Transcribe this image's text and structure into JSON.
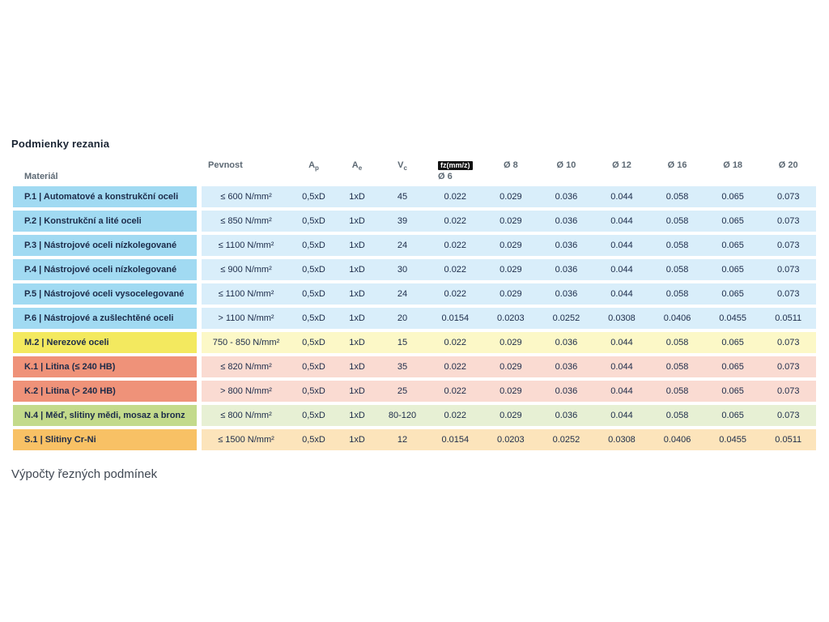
{
  "page": {
    "title": "Podmienky rezania",
    "footer_text": "Výpočty řezných podmínek"
  },
  "table": {
    "fz_badge": "fz(mm/z)",
    "headers": {
      "material": "Materiál",
      "strength": "Pevnost",
      "ap": {
        "base": "A",
        "sub": "p"
      },
      "ae": {
        "base": "A",
        "sub": "e"
      },
      "vc": {
        "base": "V",
        "sub": "c"
      },
      "diameters": [
        "Ø 6",
        "Ø 8",
        "Ø 10",
        "Ø 12",
        "Ø 16",
        "Ø 18",
        "Ø 20"
      ]
    },
    "colors": {
      "badge_bg": "#111111",
      "badge_fg": "#ffffff",
      "steel": {
        "label": "#a1daf2",
        "data": "#d9eefa"
      },
      "stainless": {
        "label": "#f3e95f",
        "data": "#fcf8c7"
      },
      "cast_iron": {
        "label": "#ef9279",
        "data": "#fadbd2"
      },
      "nonferrous": {
        "label": "#c3da8b",
        "data": "#e7f0d4"
      },
      "superalloy": {
        "label": "#f8c165",
        "data": "#fce4bb"
      }
    },
    "rows": [
      {
        "group": "steel",
        "material": "P.1 | Automatové a konstrukční oceli",
        "strength": "≤ 600 N/mm²",
        "ap": "0,5xD",
        "ae": "1xD",
        "vc": "45",
        "fz": [
          "0.022",
          "0.029",
          "0.036",
          "0.044",
          "0.058",
          "0.065",
          "0.073"
        ]
      },
      {
        "group": "steel",
        "material": "P.2 | Konstrukční a lité oceli",
        "strength": "≤ 850 N/mm²",
        "ap": "0,5xD",
        "ae": "1xD",
        "vc": "39",
        "fz": [
          "0.022",
          "0.029",
          "0.036",
          "0.044",
          "0.058",
          "0.065",
          "0.073"
        ]
      },
      {
        "group": "steel",
        "material": "P.3 | Nástrojové oceli nízkolegované",
        "strength": "≤ 1100 N/mm²",
        "ap": "0,5xD",
        "ae": "1xD",
        "vc": "24",
        "fz": [
          "0.022",
          "0.029",
          "0.036",
          "0.044",
          "0.058",
          "0.065",
          "0.073"
        ]
      },
      {
        "group": "steel",
        "material": "P.4 | Nástrojové oceli nízkolegované",
        "strength": "≤ 900 N/mm²",
        "ap": "0,5xD",
        "ae": "1xD",
        "vc": "30",
        "fz": [
          "0.022",
          "0.029",
          "0.036",
          "0.044",
          "0.058",
          "0.065",
          "0.073"
        ]
      },
      {
        "group": "steel",
        "material": "P.5 | Nástrojové oceli vysocelegované",
        "strength": "≤ 1100 N/mm²",
        "ap": "0,5xD",
        "ae": "1xD",
        "vc": "24",
        "fz": [
          "0.022",
          "0.029",
          "0.036",
          "0.044",
          "0.058",
          "0.065",
          "0.073"
        ]
      },
      {
        "group": "steel",
        "material": "P.6 | Nástrojové a zušlechtěné oceli",
        "strength": "> 1100 N/mm²",
        "ap": "0,5xD",
        "ae": "1xD",
        "vc": "20",
        "fz": [
          "0.0154",
          "0.0203",
          "0.0252",
          "0.0308",
          "0.0406",
          "0.0455",
          "0.0511"
        ]
      },
      {
        "group": "stainless",
        "material": "M.2 | Nerezové oceli",
        "strength": "750 - 850 N/mm²",
        "ap": "0,5xD",
        "ae": "1xD",
        "vc": "15",
        "fz": [
          "0.022",
          "0.029",
          "0.036",
          "0.044",
          "0.058",
          "0.065",
          "0.073"
        ]
      },
      {
        "group": "cast_iron",
        "material": "K.1 | Litina (≤ 240 HB)",
        "strength": "≤ 820 N/mm²",
        "ap": "0,5xD",
        "ae": "1xD",
        "vc": "35",
        "fz": [
          "0.022",
          "0.029",
          "0.036",
          "0.044",
          "0.058",
          "0.065",
          "0.073"
        ]
      },
      {
        "group": "cast_iron",
        "material": "K.2 | Litina (> 240 HB)",
        "strength": "> 800 N/mm²",
        "ap": "0,5xD",
        "ae": "1xD",
        "vc": "25",
        "fz": [
          "0.022",
          "0.029",
          "0.036",
          "0.044",
          "0.058",
          "0.065",
          "0.073"
        ]
      },
      {
        "group": "nonferrous",
        "material": "N.4 | Měď, slitiny mědi, mosaz a bronz",
        "strength": "≤ 800 N/mm²",
        "ap": "0,5xD",
        "ae": "1xD",
        "vc": "80-120",
        "fz": [
          "0.022",
          "0.029",
          "0.036",
          "0.044",
          "0.058",
          "0.065",
          "0.073"
        ]
      },
      {
        "group": "superalloy",
        "material": "S.1 | Slitiny Cr-Ni",
        "strength": "≤ 1500 N/mm²",
        "ap": "0,5xD",
        "ae": "1xD",
        "vc": "12",
        "fz": [
          "0.0154",
          "0.0203",
          "0.0252",
          "0.0308",
          "0.0406",
          "0.0455",
          "0.0511"
        ]
      }
    ]
  }
}
